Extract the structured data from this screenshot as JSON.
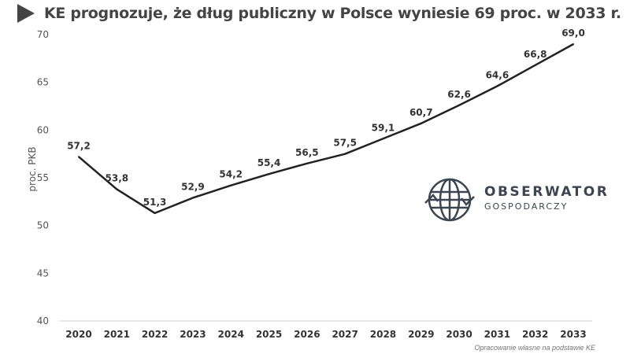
{
  "chart_data": {
    "type": "line",
    "title": "KE prognozuje, że dług publiczny w Polsce wyniesie 69 proc. w 2033 r.",
    "xlabel": "",
    "ylabel": "proc. PKB",
    "ylim": [
      40,
      70
    ],
    "yticks": [
      "40",
      "45",
      "50",
      "55",
      "60",
      "65",
      "70"
    ],
    "categories": [
      "2020",
      "2021",
      "2022",
      "2023",
      "2024",
      "2025",
      "2026",
      "2027",
      "2028",
      "2029",
      "2030",
      "2031",
      "2032",
      "2033"
    ],
    "values": [
      57.2,
      53.8,
      51.3,
      52.9,
      54.2,
      55.4,
      56.5,
      57.5,
      59.1,
      60.7,
      62.6,
      64.6,
      66.8,
      69.0
    ],
    "data_labels": [
      "57,2",
      "53,8",
      "51,3",
      "52,9",
      "54,2",
      "55,4",
      "56,5",
      "57,5",
      "59,1",
      "60,7",
      "62,6",
      "64,6",
      "66,8",
      "69,0"
    ],
    "grid": false,
    "line_color": "#222222"
  },
  "logo": {
    "main": "OBSERWATOR",
    "sub": "GOSPODARCZY",
    "color": "#3d4550"
  },
  "source": "Opracowanie własne na podstawie KE"
}
